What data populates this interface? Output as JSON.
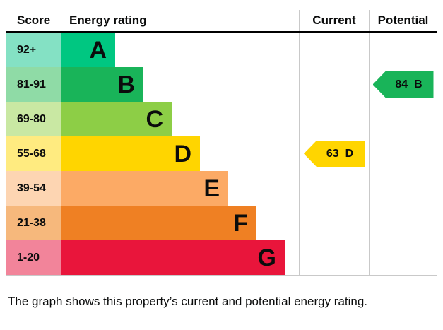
{
  "header": {
    "score": "Score",
    "energy_rating": "Energy rating",
    "current": "Current",
    "potential": "Potential"
  },
  "chart_data": {
    "type": "bar",
    "description": "EPC energy efficiency rating bands with current and potential rating markers",
    "categories": [
      "A",
      "B",
      "C",
      "D",
      "E",
      "F",
      "G"
    ],
    "bands": [
      {
        "score": "92+",
        "letter": "A",
        "color": "#00c781",
        "tint": "#84e1c4"
      },
      {
        "score": "81-91",
        "letter": "B",
        "color": "#19b459",
        "tint": "#8fdba6"
      },
      {
        "score": "69-80",
        "letter": "C",
        "color": "#8dce46",
        "tint": "#c9e8a3"
      },
      {
        "score": "55-68",
        "letter": "D",
        "color": "#ffd500",
        "tint": "#ffeb80"
      },
      {
        "score": "39-54",
        "letter": "E",
        "color": "#fcaa65",
        "tint": "#fdd5b2"
      },
      {
        "score": "21-38",
        "letter": "F",
        "color": "#ef8023",
        "tint": "#f6b87c"
      },
      {
        "score": "1-20",
        "letter": "G",
        "color": "#e9153b",
        "tint": "#f2849a"
      }
    ],
    "current": {
      "value": 63,
      "letter": "D",
      "band_color": "#ffd500",
      "text_color": "#0b0c0c"
    },
    "potential": {
      "value": 84,
      "letter": "B",
      "band_color": "#19b459",
      "text_color": "#0b0c0c"
    }
  },
  "footer": {
    "caption": "The graph shows this property’s current and potential energy rating."
  }
}
